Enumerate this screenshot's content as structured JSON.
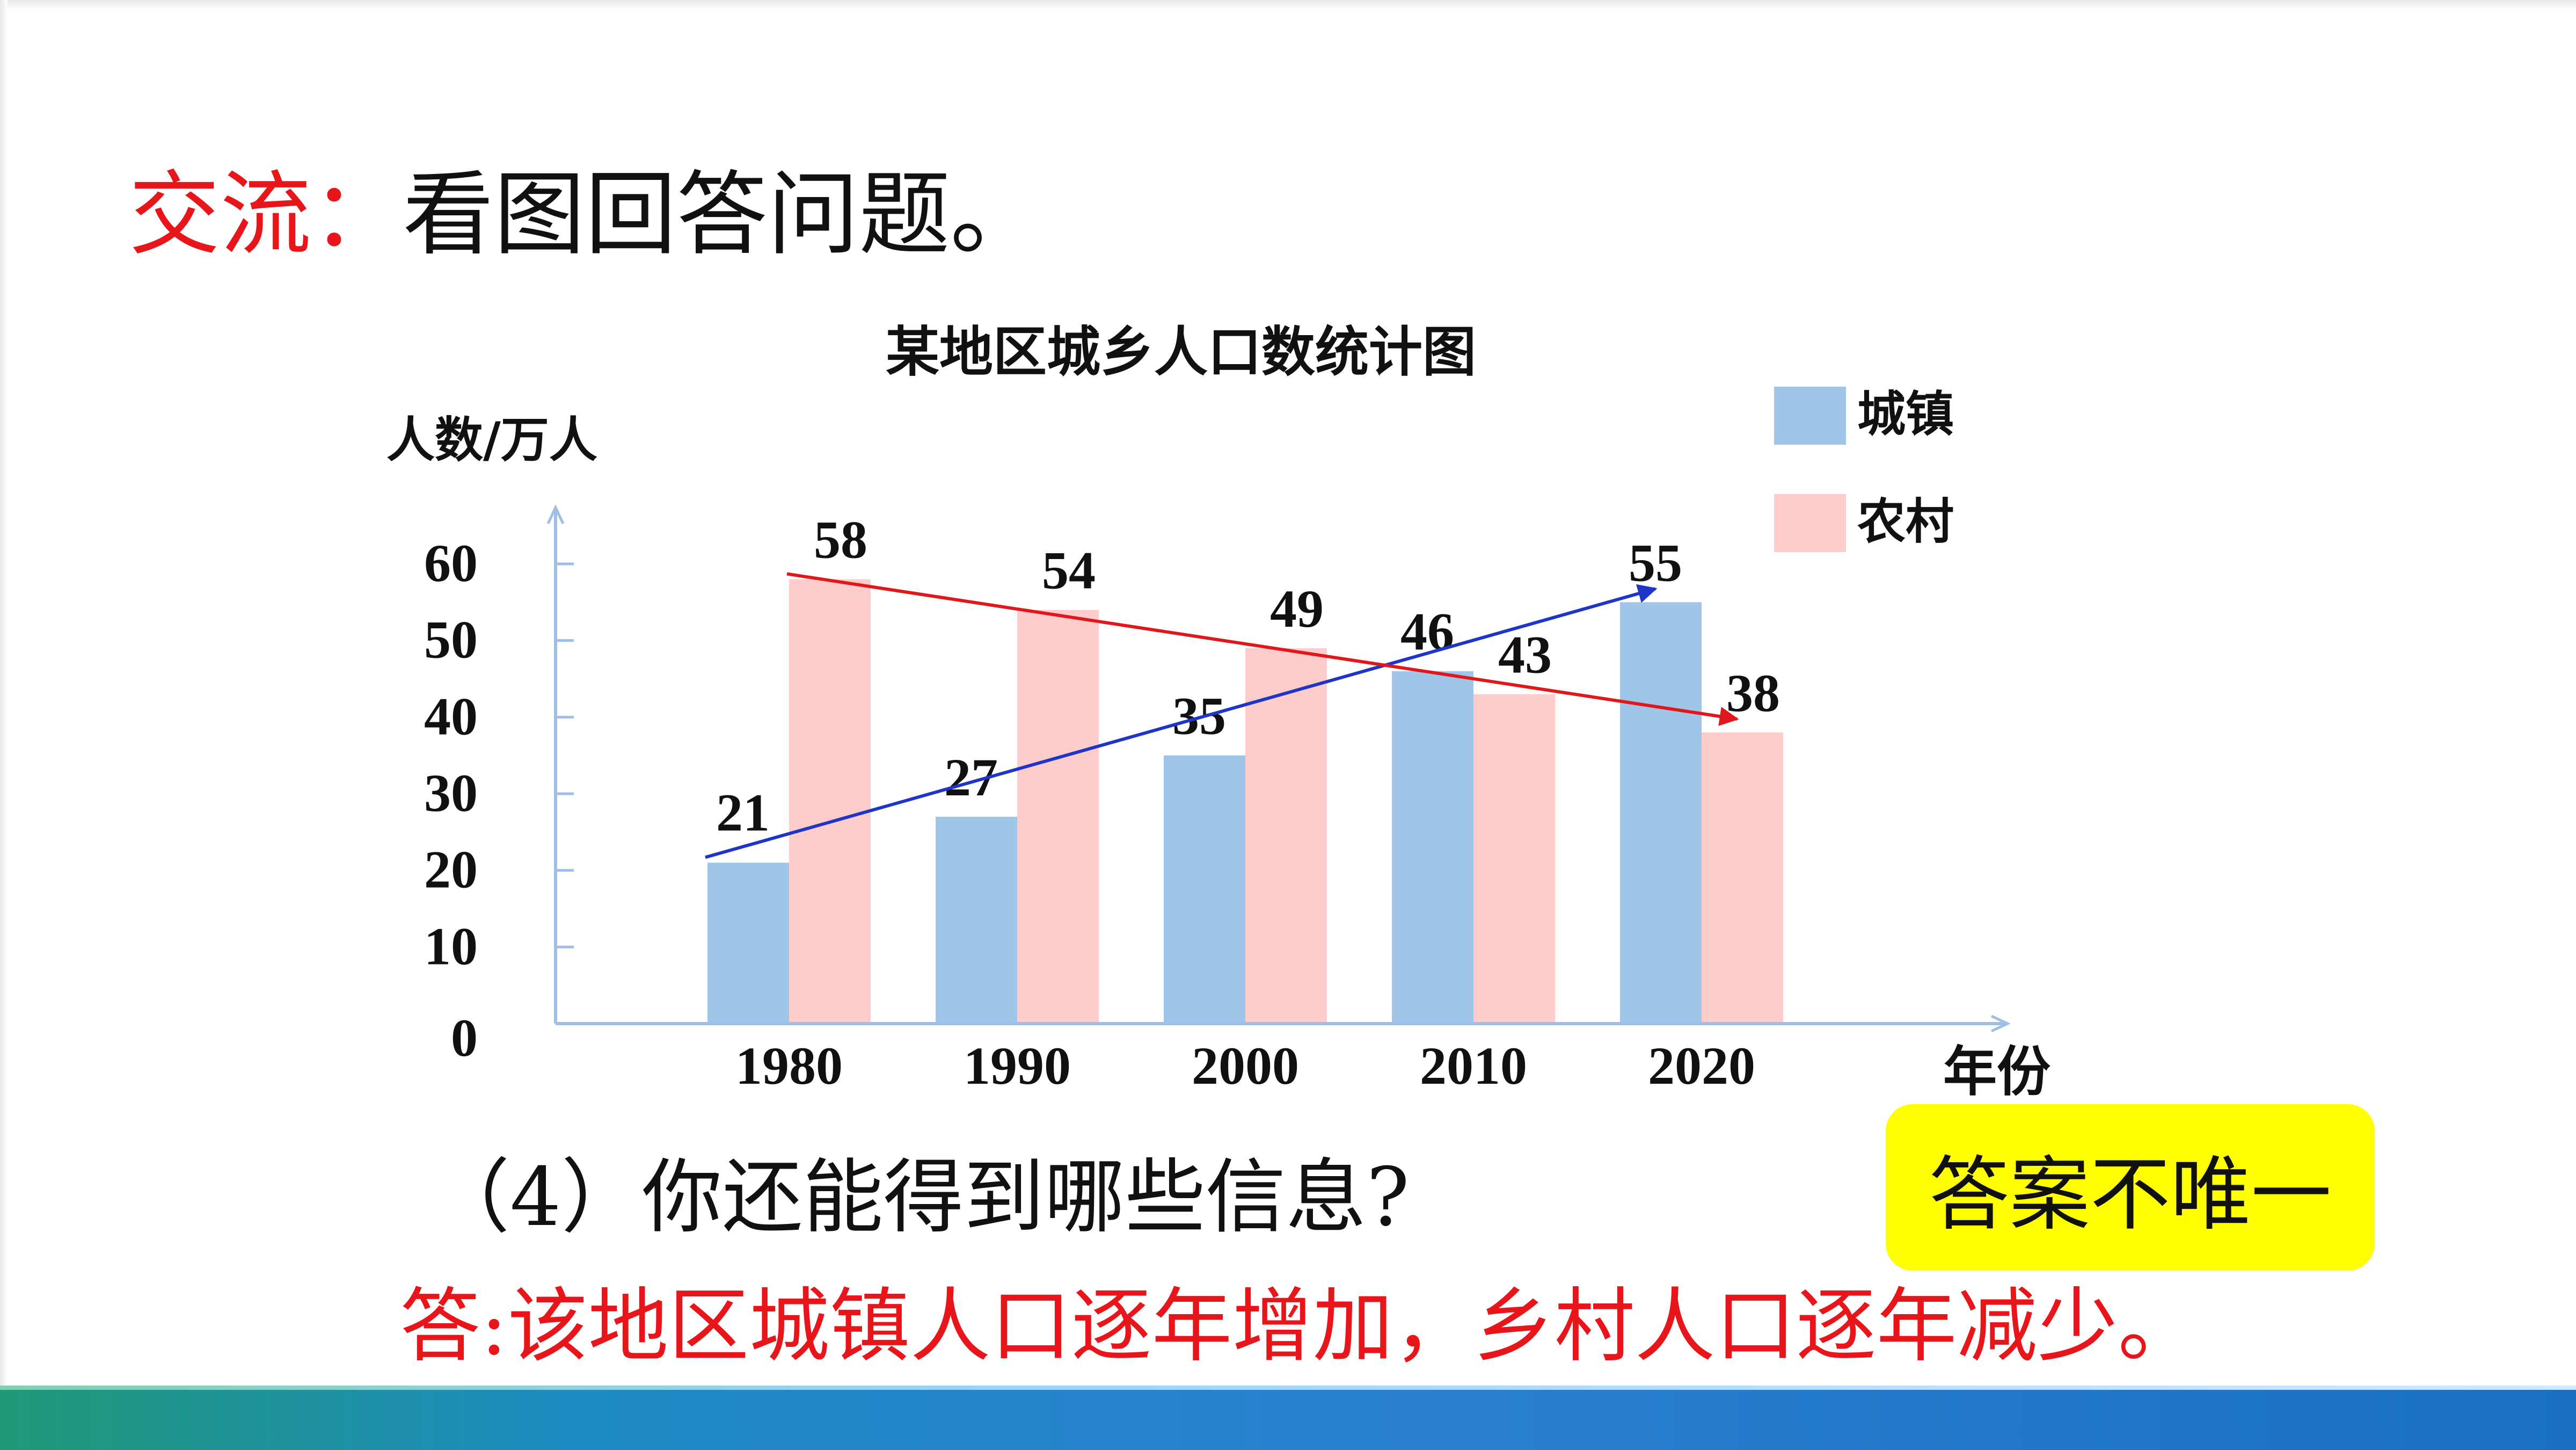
{
  "header": {
    "lead": "交流：",
    "rest": "看图回答问题。"
  },
  "chart_data": {
    "type": "bar",
    "title": "某地区城乡人口数统计图",
    "ylabel": "人数/万人",
    "xlabel": "年份",
    "categories": [
      "1980",
      "1990",
      "2000",
      "2010",
      "2020"
    ],
    "y_ticks": [
      "0",
      "10",
      "20",
      "30",
      "40",
      "50",
      "60"
    ],
    "ylim": [
      0,
      60
    ],
    "series": [
      {
        "name": "城镇",
        "values": [
          21,
          27,
          35,
          46,
          55
        ],
        "color": "#9fc5e8"
      },
      {
        "name": "农村",
        "values": [
          58,
          54,
          49,
          43,
          38
        ],
        "color": "#ffcccc"
      }
    ],
    "trend_colors": {
      "城镇": "#1f35c8",
      "农村": "#e0171b"
    },
    "legend_position": "top-right",
    "grid": false
  },
  "question": "（4）你还能得到哪些信息?",
  "answer": "答:该地区城镇人口逐年增加，乡村人口逐年减少。",
  "badge": "答案不唯一"
}
